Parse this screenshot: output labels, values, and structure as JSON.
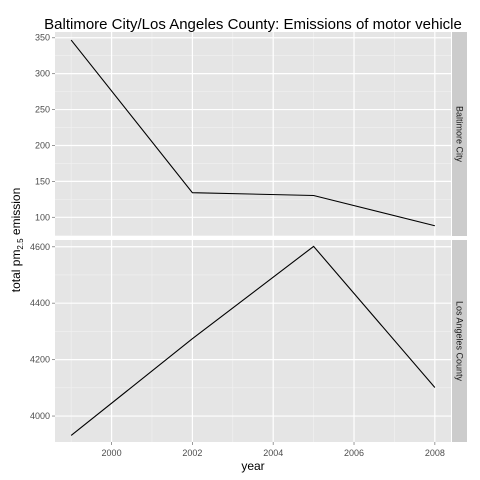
{
  "chart_data": {
    "type": "line",
    "title": "Baltimore City/Los Angeles County: Emissions of motor vehicle",
    "xlabel": "year",
    "ylabel": "total pm2.5 emission",
    "ylabel_main": "total pm",
    "ylabel_sub": "2.5",
    "ylabel_tail": " emission",
    "x_ticks": [
      2000,
      2002,
      2004,
      2006,
      2008
    ],
    "xlim": [
      1998.6,
      2008.4
    ],
    "grid": true,
    "legend": "none",
    "panels": [
      {
        "strip": "Baltimore City",
        "ylim": [
          74,
          358
        ],
        "y_ticks": [
          100,
          150,
          200,
          250,
          300,
          350
        ],
        "series": [
          {
            "x": [
              1999,
              2002,
              2005,
              2008
            ],
            "values": [
              346.8,
              134.3,
              130.4,
              88.3
            ]
          }
        ]
      },
      {
        "strip": "Los Angeles County",
        "ylim": [
          3908,
          4624
        ],
        "y_ticks": [
          4000,
          4200,
          4400,
          4600
        ],
        "series": [
          {
            "x": [
              1999,
              2002,
              2005,
              2008
            ],
            "values": [
              3931.1,
              4274.0,
              4601.4,
              4101.3
            ]
          }
        ]
      }
    ],
    "colors": {
      "panel_bg": "#e5e5e5",
      "strip_bg": "#cccccc",
      "grid_major": "#ffffff",
      "grid_minor": "#f2f2f2",
      "line": "#000000"
    }
  }
}
